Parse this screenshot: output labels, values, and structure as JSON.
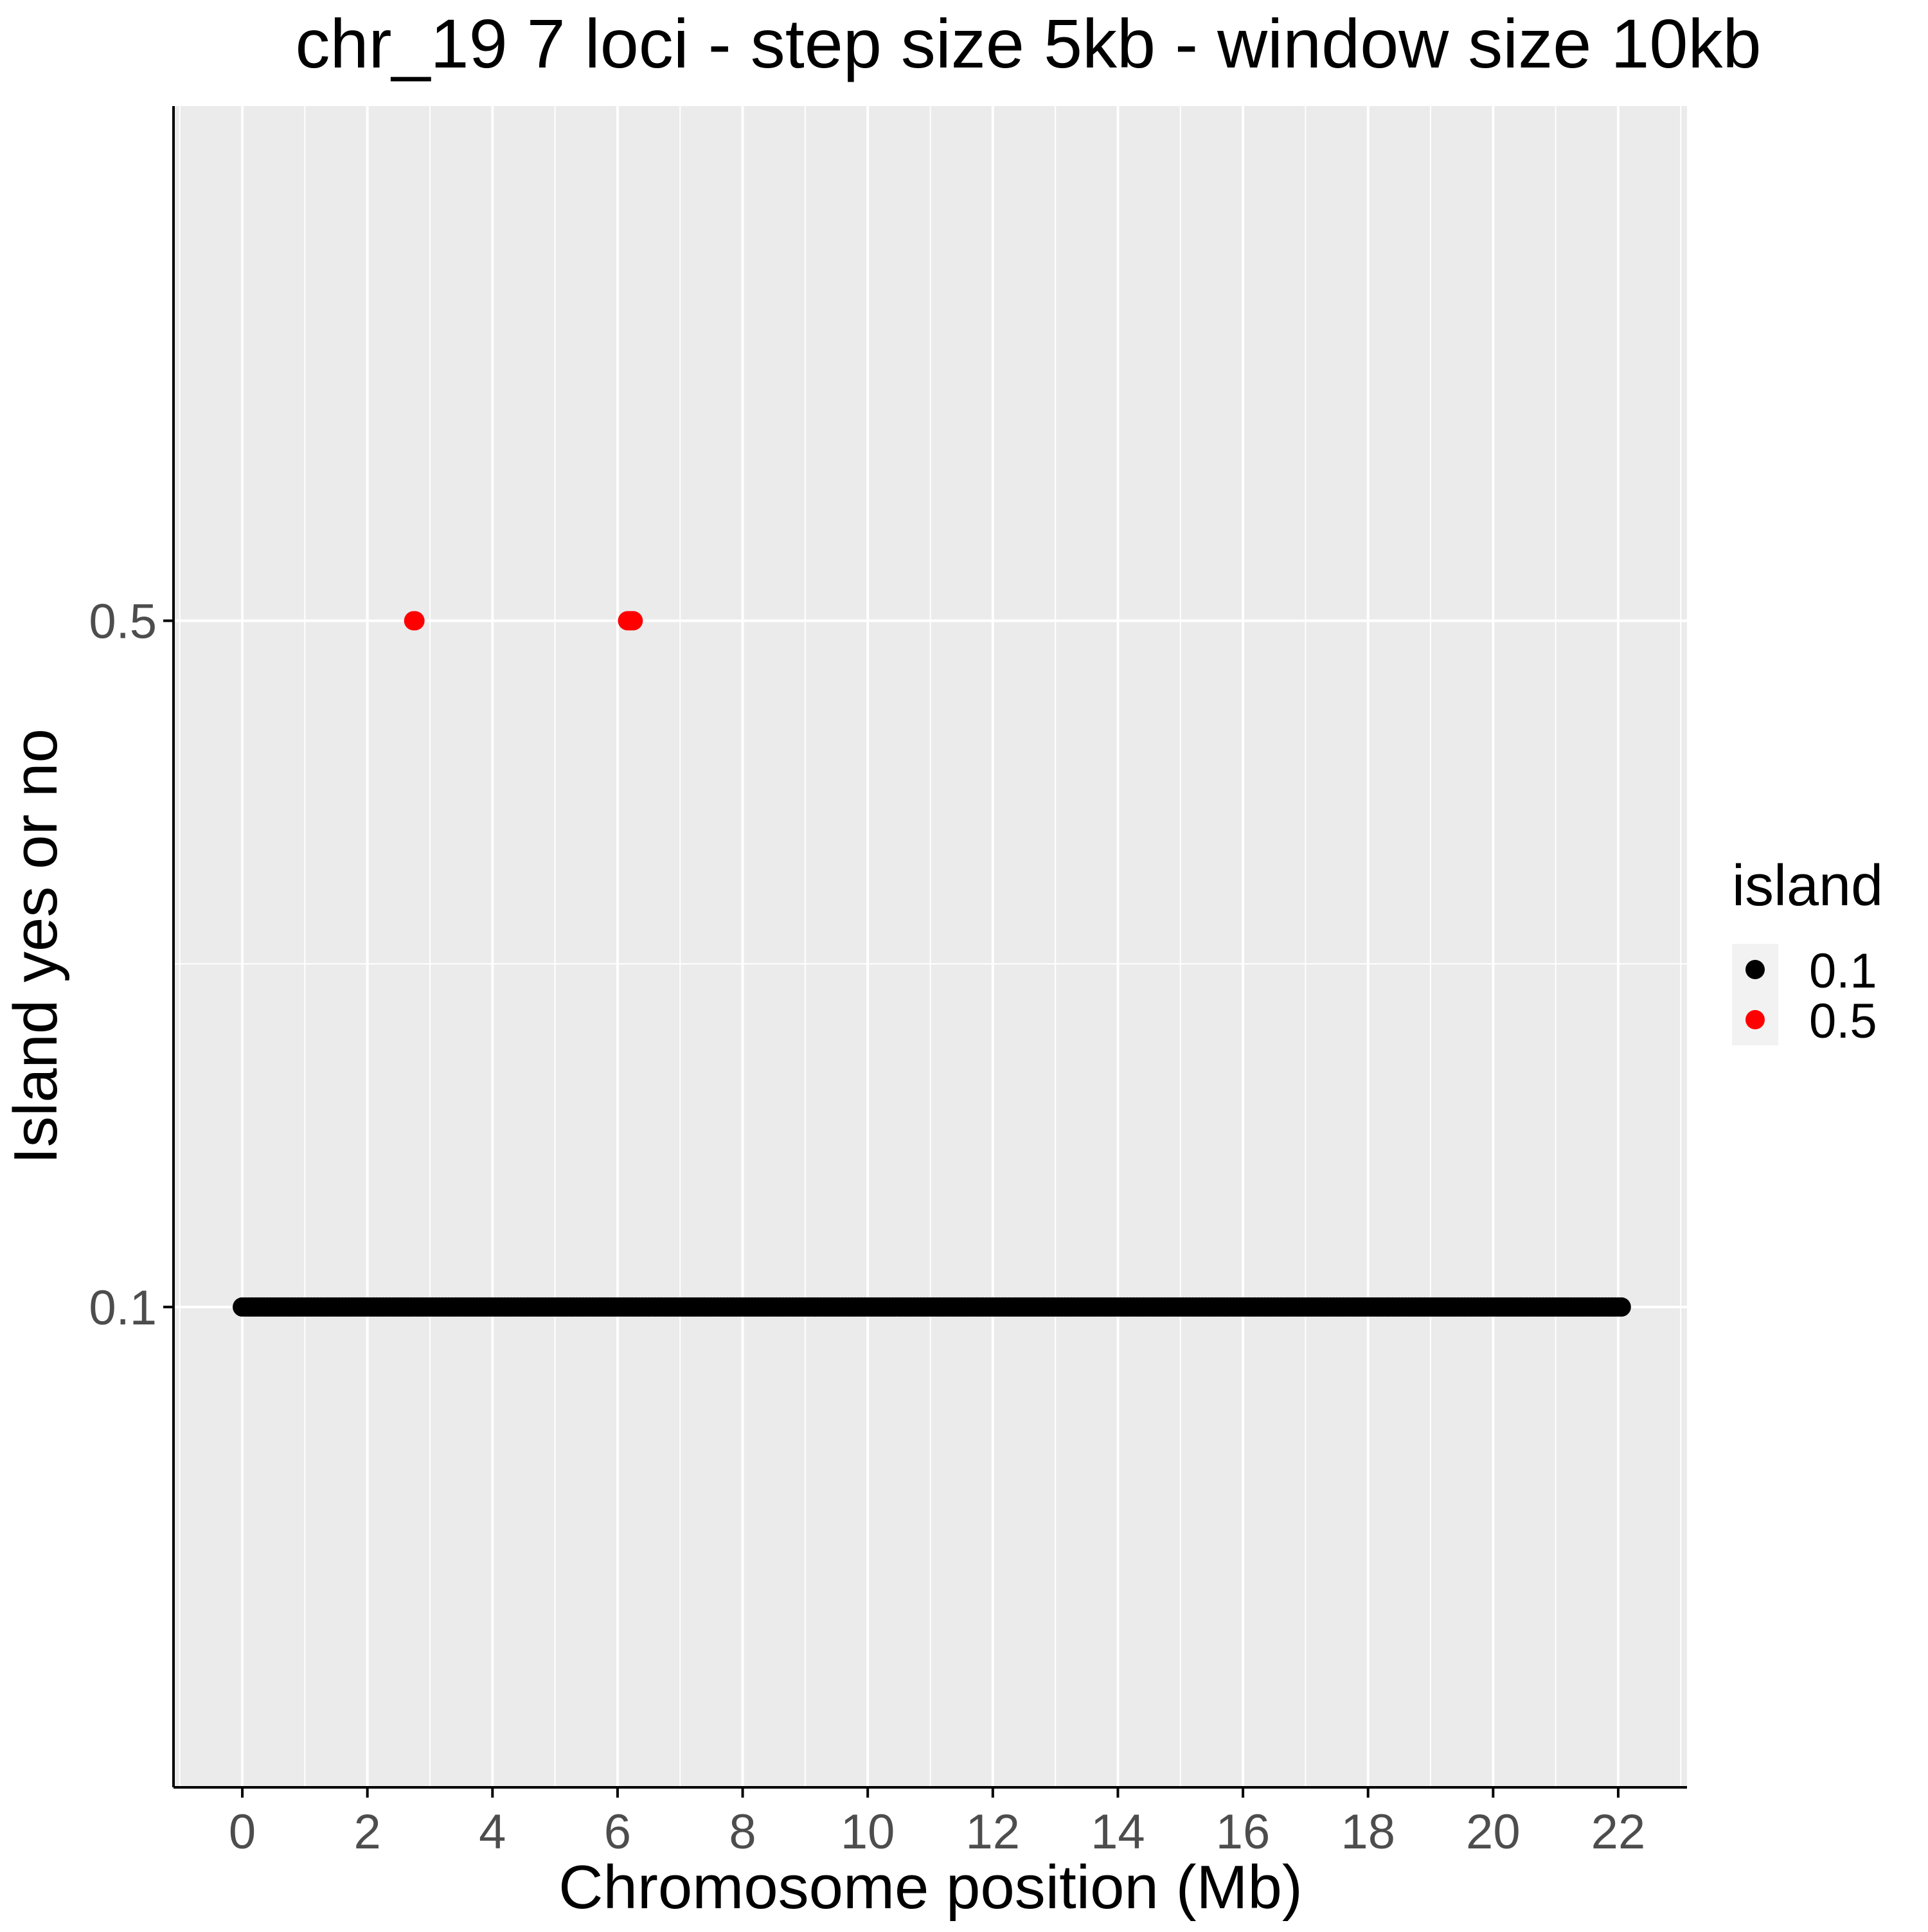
{
  "chart_data": {
    "type": "scatter",
    "title": "chr_19 7 loci - step size 5kb - window size 10kb",
    "xlabel": "Chromosome position (Mb)",
    "ylabel": "Island yes or no",
    "xlim": [
      -1.1,
      23.1
    ],
    "ylim": [
      -0.18,
      0.8
    ],
    "x_ticks": [
      0,
      2,
      4,
      6,
      8,
      10,
      12,
      14,
      16,
      18,
      20,
      22
    ],
    "x_tick_labels": [
      "0",
      "2",
      "4",
      "6",
      "8",
      "10",
      "12",
      "14",
      "16",
      "18",
      "20",
      "22"
    ],
    "y_ticks": [
      0.1,
      0.5
    ],
    "y_tick_labels": [
      "0.1",
      "0.5"
    ],
    "grid": true,
    "legend": {
      "title": "island",
      "placement": "right",
      "entries": [
        {
          "label": "0.1",
          "color": "#000000"
        },
        {
          "label": "0.5",
          "color": "#ff0000"
        }
      ]
    },
    "series": [
      {
        "name": "0.1",
        "color": "#000000",
        "x_range": [
          0,
          22.05
        ],
        "x_step": 0.005,
        "y": 0.1
      },
      {
        "name": "0.5",
        "color": "#ff0000",
        "x": [
          2.74,
          2.76,
          6.16,
          6.19,
          6.21,
          6.23,
          6.25
        ],
        "y": [
          0.5,
          0.5,
          0.5,
          0.5,
          0.5,
          0.5,
          0.5
        ]
      }
    ]
  },
  "colors": {
    "panel_background": "#ebebeb",
    "grid": "#ffffff",
    "axis": "#000000",
    "tick_label": "#4d4d4d"
  }
}
